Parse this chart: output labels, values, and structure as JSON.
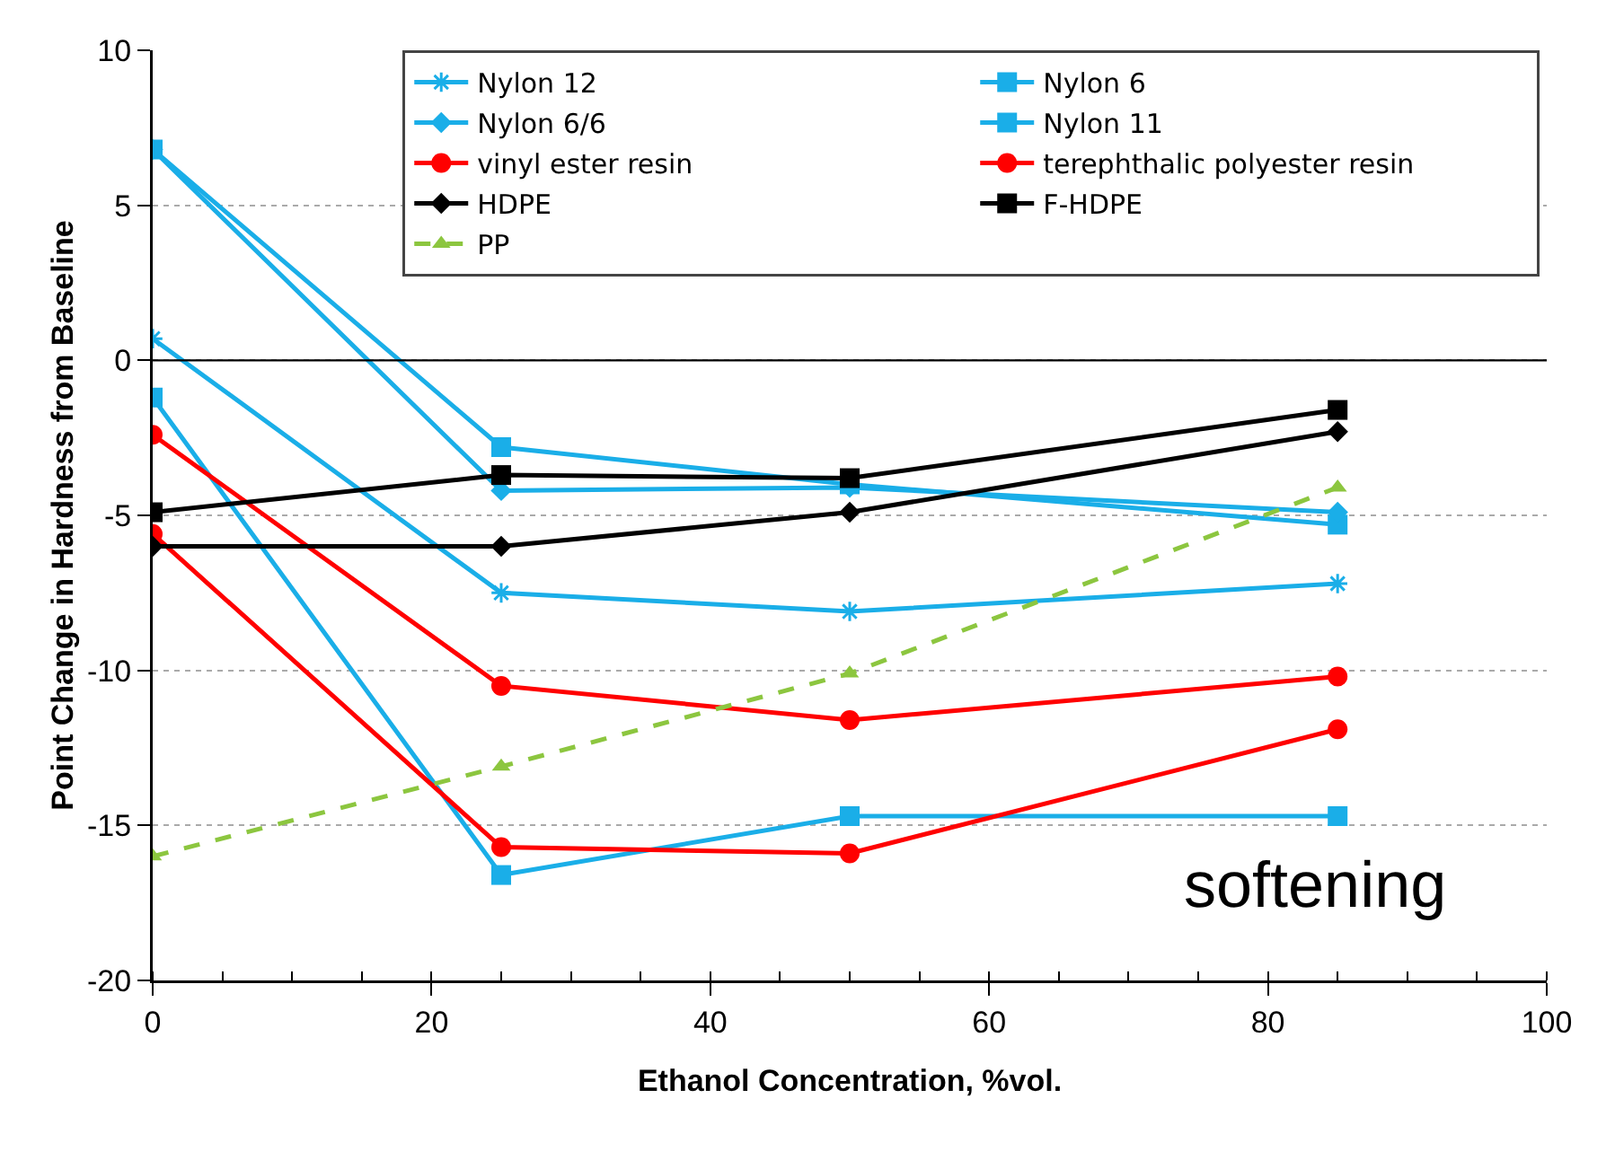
{
  "chart_data": {
    "type": "line",
    "xlabel": "Ethanol Concentration, %vol.",
    "ylabel": "Point Change in Hardness from Baseline",
    "x": [
      0,
      25,
      50,
      85
    ],
    "xlim": [
      0,
      100
    ],
    "xticks": [
      0,
      20,
      40,
      60,
      80,
      100
    ],
    "ylim": [
      -20,
      10
    ],
    "yticks": [
      -20,
      -15,
      -10,
      -5,
      0,
      5,
      10
    ],
    "grid": "y",
    "legend": "top right",
    "line_style": "solid",
    "annotations": [
      "softening"
    ],
    "ref_lines": [
      {
        "axis": "y",
        "value": 0,
        "color": "#000000"
      }
    ],
    "series": [
      {
        "name": "Nylon 12",
        "color": "#1aaee8",
        "marker": "cross",
        "values": [
          0.7,
          -7.5,
          -8.1,
          -7.2
        ]
      },
      {
        "name": "Nylon 6",
        "color": "#1aaee8",
        "marker": "square",
        "values": [
          6.8,
          -2.8,
          -4.0,
          -5.3
        ]
      },
      {
        "name": "Nylon 6/6",
        "color": "#1aaee8",
        "marker": "diamond",
        "values": [
          6.8,
          -4.2,
          -4.1,
          -4.9
        ]
      },
      {
        "name": "Nylon 11",
        "color": "#1aaee8",
        "marker": "square",
        "values": [
          -1.2,
          -16.6,
          -14.7,
          -14.7
        ]
      },
      {
        "name": "vinyl ester resin",
        "color": "#ff0000",
        "marker": "circle",
        "values": [
          -2.4,
          -10.5,
          -11.6,
          -10.2
        ]
      },
      {
        "name": "terephthalic polyester resin",
        "color": "#ff0000",
        "marker": "circle",
        "values": [
          -5.6,
          -15.7,
          -15.9,
          -11.9
        ]
      },
      {
        "name": "HDPE",
        "color": "#000000",
        "marker": "diamond",
        "values": [
          -6.0,
          -6.0,
          -4.9,
          -2.3
        ]
      },
      {
        "name": "F-HDPE",
        "color": "#000000",
        "marker": "square",
        "values": [
          -4.9,
          -3.7,
          -3.8,
          -1.6
        ]
      },
      {
        "name": "PP",
        "color": "#8cc63f",
        "marker": "triangle",
        "line_style": "dashed",
        "values": [
          -16.0,
          -13.1,
          -10.1,
          -4.1
        ]
      }
    ]
  }
}
